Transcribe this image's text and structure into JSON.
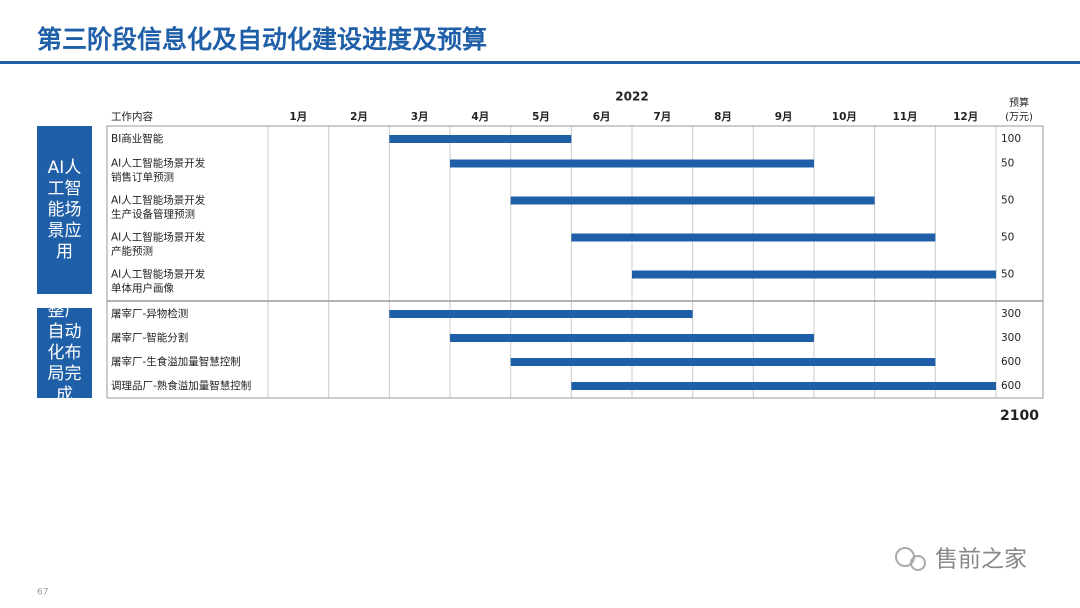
{
  "title": "第三阶段信息化及自动化建设进度及预算",
  "page_number": "67",
  "watermark": "售前之家",
  "chart_data": {
    "type": "gantt",
    "year": "2022",
    "task_header": "工作内容",
    "budget_header": [
      "预算",
      "(万元)"
    ],
    "categories": [
      "1月",
      "2月",
      "3月",
      "4月",
      "5月",
      "6月",
      "7月",
      "8月",
      "9月",
      "10月",
      "11月",
      "12月"
    ],
    "xlim": [
      0,
      12
    ],
    "color": "#1f5fa8",
    "groups": [
      {
        "name": "AI人工智能场景应用",
        "tasks": [
          {
            "label": [
              "BI商业智能"
            ],
            "start": 2,
            "end": 5,
            "budget": 100
          },
          {
            "label": [
              "AI人工智能场景开发",
              "销售订单预测"
            ],
            "start": 3,
            "end": 9,
            "budget": 50
          },
          {
            "label": [
              "AI人工智能场景开发",
              "生产设备管理预测"
            ],
            "start": 4,
            "end": 10,
            "budget": 50
          },
          {
            "label": [
              "AI人工智能场景开发",
              "产能预测"
            ],
            "start": 5,
            "end": 11,
            "budget": 50
          },
          {
            "label": [
              "AI人工智能场景开发",
              "单体用户画像"
            ],
            "start": 6,
            "end": 12,
            "budget": 50
          }
        ]
      },
      {
        "name": "整厂自动化布局完成",
        "tasks": [
          {
            "label": [
              "屠宰厂-异物检测"
            ],
            "start": 2,
            "end": 7,
            "budget": 300
          },
          {
            "label": [
              "屠宰厂-智能分割"
            ],
            "start": 3,
            "end": 9,
            "budget": 300
          },
          {
            "label": [
              "屠宰厂-生食溢加量智慧控制"
            ],
            "start": 4,
            "end": 11,
            "budget": 600
          },
          {
            "label": [
              "调理品厂-熟食溢加量智慧控制"
            ],
            "start": 5,
            "end": 12,
            "budget": 600
          }
        ]
      }
    ],
    "total": 2100
  }
}
